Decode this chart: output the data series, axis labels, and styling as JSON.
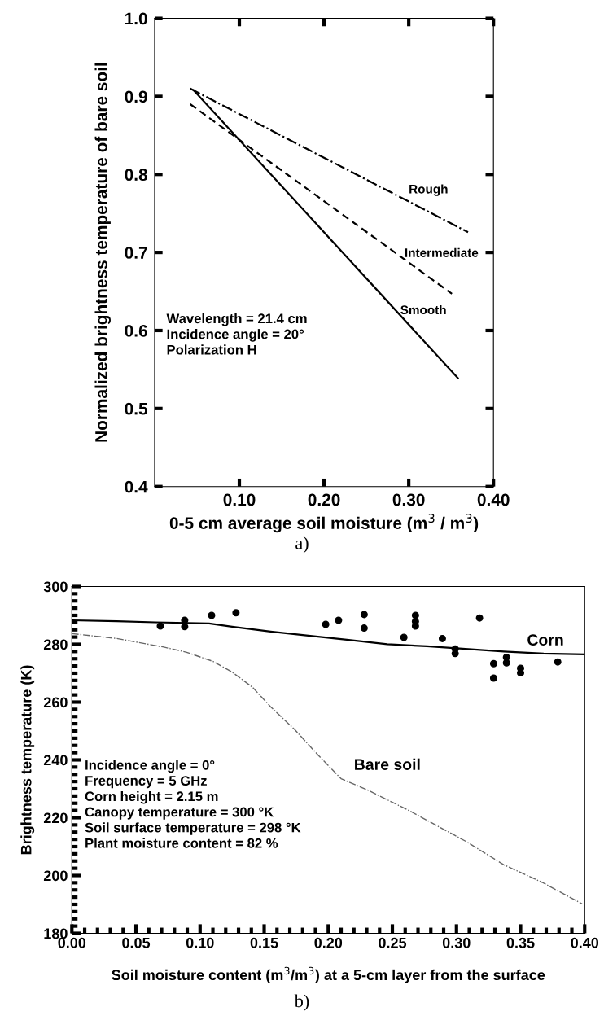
{
  "chart_data": [
    {
      "type": "line",
      "xlabel": "0-5 cm average soil moisture (m$^{3}$ / m$^{3}$)",
      "ylabel": "Normalized brightness temperature of bare soil",
      "xlim": [
        0,
        0.4
      ],
      "xticks": [
        {
          "value": 0.1,
          "label": "0.10"
        },
        {
          "value": 0.2,
          "label": "0.20"
        },
        {
          "value": 0.3,
          "label": "0.30"
        },
        {
          "value": 0.4,
          "label": "0.40"
        }
      ],
      "ylim": [
        0.4,
        1.0
      ],
      "yticks": [
        0.4,
        0.5,
        0.6,
        0.7,
        0.8,
        0.9,
        {
          "value": 1.0,
          "label": "1.0"
        }
      ],
      "grid": false,
      "legend": false,
      "series": [
        {
          "color": "#000000",
          "line_style": "dashdot",
          "x": [
            0.042,
            0.37
          ],
          "values": [
            0.91,
            0.726
          ]
        },
        {
          "color": "#000000",
          "line_style": "dashed",
          "x": [
            0.042,
            0.351
          ],
          "values": [
            0.89,
            0.647
          ]
        },
        {
          "color": "#000000",
          "line_style": "solid",
          "x": [
            0.046,
            0.358
          ],
          "values": [
            0.908,
            0.539
          ]
        }
      ],
      "annotations": [
        "Wavelength = 21.4 cm\nIncidence angle = 20°\nPolarization H",
        "a)",
        "Rough",
        "Intermediate",
        "Smooth"
      ]
    },
    {
      "type": "line",
      "xlabel": "Soil moisture content (m$^{3}$/m$^{3}$) at a 5-cm layer from the surface",
      "ylabel": "Brightness temperature (K)",
      "xlim": [
        0,
        0.4
      ],
      "xticks": [
        {
          "value": 0,
          "label": "0.00"
        },
        {
          "value": 0.05,
          "label": "0.05"
        },
        {
          "value": 0.1,
          "label": "0.10"
        },
        {
          "value": 0.15,
          "label": "0.15"
        },
        {
          "value": 0.2,
          "label": "0.20"
        },
        {
          "value": 0.25,
          "label": "0.25"
        },
        {
          "value": 0.3,
          "label": "0.30"
        },
        {
          "value": 0.35,
          "label": "0.35"
        },
        {
          "value": 0.4,
          "label": "0.40"
        }
      ],
      "ylim": [
        180,
        300
      ],
      "yticks": [
        180,
        200,
        220,
        240,
        260,
        280,
        300
      ],
      "grid": false,
      "legend": false,
      "series": [
        {
          "type": "line",
          "color": "#000000",
          "line_style": "solid",
          "x": [
            0,
            0.035,
            0.065,
            0.107,
            0.125,
            0.155,
            0.186,
            0.216,
            0.246,
            0.277,
            0.307,
            0.337,
            0.368,
            0.4
          ],
          "values": [
            288.3,
            288,
            287.6,
            287.2,
            286.1,
            284.4,
            282.9,
            281.5,
            280,
            279.3,
            278.4,
            277.5,
            276.8,
            276.5
          ]
        },
        {
          "type": "line",
          "color": "#666666",
          "line_style": "dashdot",
          "x": [
            0,
            0.035,
            0.071,
            0.089,
            0.11,
            0.125,
            0.141,
            0.155,
            0.174,
            0.192,
            0.21,
            0.231,
            0.262,
            0.307,
            0.337,
            0.367,
            0.398
          ],
          "values": [
            283.7,
            282,
            279.1,
            277.3,
            274.1,
            270.4,
            265.1,
            258.4,
            250.4,
            241.7,
            233.5,
            229.5,
            222.7,
            211.9,
            203.7,
            197.6,
            190.2
          ]
        },
        {
          "type": "scatter",
          "color": "#000000",
          "marker": "circle",
          "x": [
            0.069,
            0.088,
            0.088,
            0.109,
            0.128,
            0.198,
            0.208,
            0.228,
            0.228,
            0.259,
            0.268,
            0.268,
            0.268,
            0.289,
            0.299,
            0.299,
            0.318,
            0.329,
            0.329,
            0.339,
            0.339,
            0.35,
            0.35,
            0.379
          ],
          "values": [
            286.3,
            288.3,
            286.1,
            290,
            290.9,
            286.9,
            288.3,
            290.3,
            285.6,
            282.4,
            290,
            287.9,
            286.3,
            282,
            278.4,
            276.8,
            289.1,
            273.3,
            268.3,
            275.5,
            273.6,
            271.7,
            270.1,
            273.9
          ]
        }
      ],
      "annotations": [
        "Incidence angle = 0°\nFrequency = 5 GHz\nCorn height = 2.15 m\nCanopy temperature = 300 °K\nSoil surface temperature = 298 °K\nPlant moisture content = 82 %",
        "b)",
        "Corn",
        "Bare soil"
      ]
    }
  ]
}
